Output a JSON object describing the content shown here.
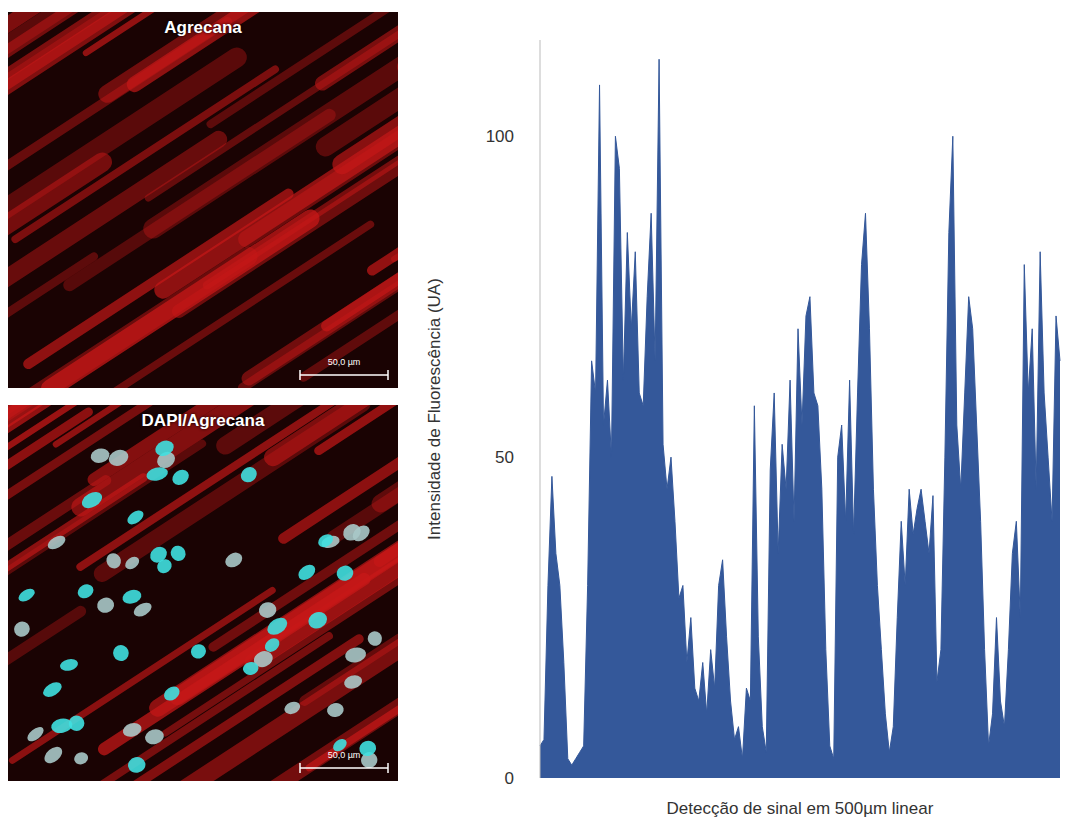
{
  "images": [
    {
      "label": "Agrecana",
      "scale_bar": "50,0 µm"
    },
    {
      "label": "DAPI/Agrecana",
      "scale_bar": "50,0 µm"
    }
  ],
  "chart_data": {
    "type": "area",
    "y_label": "Intensidade de Fluorescência (UA)",
    "x_label": "Detecção de sinal em 500µm linear",
    "color": "#34589a",
    "ylim": [
      0,
      115
    ],
    "yticks": [
      0,
      50,
      100
    ],
    "grid": false,
    "tick_labels": "y",
    "values": [
      5,
      6,
      30,
      47,
      35,
      30,
      18,
      3,
      2,
      3,
      4,
      5,
      30,
      65,
      60,
      108,
      55,
      62,
      50,
      100,
      95,
      62,
      85,
      70,
      82,
      60,
      58,
      75,
      88,
      65,
      112,
      52,
      45,
      50,
      40,
      28,
      30,
      18,
      25,
      14,
      12,
      18,
      10,
      20,
      14,
      30,
      34,
      22,
      12,
      6,
      8,
      3,
      14,
      12,
      58,
      22,
      8,
      4,
      48,
      60,
      35,
      52,
      45,
      62,
      40,
      70,
      55,
      72,
      75,
      60,
      58,
      45,
      20,
      5,
      3,
      50,
      55,
      40,
      62,
      38,
      60,
      80,
      88,
      70,
      45,
      30,
      20,
      10,
      4,
      8,
      25,
      40,
      30,
      45,
      38,
      42,
      45,
      40,
      35,
      44,
      15,
      20,
      50,
      85,
      100,
      55,
      45,
      60,
      75,
      70,
      55,
      40,
      20,
      5,
      10,
      25,
      12,
      8,
      20,
      35,
      40,
      25,
      80,
      60,
      70,
      45,
      82,
      60,
      50,
      40,
      72,
      65
    ]
  }
}
